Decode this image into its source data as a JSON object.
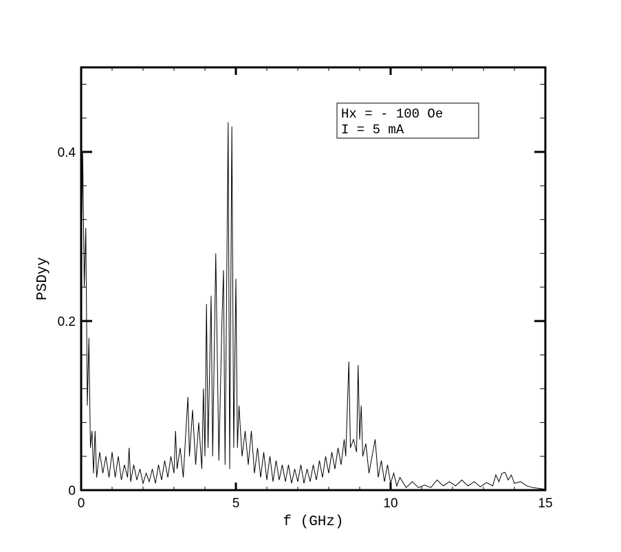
{
  "chart_data": {
    "type": "line",
    "title": "",
    "xlabel": "f (GHz)",
    "ylabel": "PSDyy",
    "xlim": [
      0,
      15
    ],
    "ylim": [
      0,
      0.5
    ],
    "x_ticks": [
      {
        "value": 0,
        "label": "0"
      },
      {
        "value": 5,
        "label": "5"
      },
      {
        "value": 10,
        "label": "10"
      },
      {
        "value": 15,
        "label": "15"
      }
    ],
    "y_ticks": [
      {
        "value": 0,
        "label": "0"
      },
      {
        "value": 0.2,
        "label": "0.2"
      },
      {
        "value": 0.4,
        "label": "0.4"
      }
    ],
    "x_minor_step": 1,
    "y_minor_step": 0.04,
    "grid": false,
    "legend_placement": "top-right",
    "annotation": {
      "lines": [
        "Hx = - 100 Oe",
        "I = 5 mA"
      ]
    },
    "peaks": [
      {
        "x": 0.02,
        "y": 0.4
      },
      {
        "x": 0.08,
        "y": 0.39
      },
      {
        "x": 0.14,
        "y": 0.31
      },
      {
        "x": 0.2,
        "y": 0.18
      },
      {
        "x": 1.55,
        "y": 0.05
      },
      {
        "x": 3.05,
        "y": 0.07
      },
      {
        "x": 3.45,
        "y": 0.11
      },
      {
        "x": 4.05,
        "y": 0.22
      },
      {
        "x": 4.2,
        "y": 0.23
      },
      {
        "x": 4.35,
        "y": 0.28
      },
      {
        "x": 4.6,
        "y": 0.26
      },
      {
        "x": 4.75,
        "y": 0.435
      },
      {
        "x": 4.87,
        "y": 0.43
      },
      {
        "x": 5.0,
        "y": 0.25
      },
      {
        "x": 8.65,
        "y": 0.152
      },
      {
        "x": 8.95,
        "y": 0.148
      },
      {
        "x": 9.05,
        "y": 0.1
      },
      {
        "x": 9.5,
        "y": 0.06
      },
      {
        "x": 13.7,
        "y": 0.021
      }
    ],
    "series": [
      {
        "values": [
          [
            0.0,
            0.25
          ],
          [
            0.05,
            0.4
          ],
          [
            0.1,
            0.24
          ],
          [
            0.15,
            0.31
          ],
          [
            0.2,
            0.1
          ],
          [
            0.25,
            0.18
          ],
          [
            0.3,
            0.05
          ],
          [
            0.35,
            0.07
          ],
          [
            0.4,
            0.02
          ],
          [
            0.45,
            0.07
          ],
          [
            0.5,
            0.015
          ],
          [
            0.6,
            0.045
          ],
          [
            0.7,
            0.02
          ],
          [
            0.8,
            0.04
          ],
          [
            0.9,
            0.015
          ],
          [
            1.0,
            0.045
          ],
          [
            1.1,
            0.015
          ],
          [
            1.2,
            0.04
          ],
          [
            1.3,
            0.012
          ],
          [
            1.4,
            0.03
          ],
          [
            1.5,
            0.015
          ],
          [
            1.55,
            0.05
          ],
          [
            1.6,
            0.01
          ],
          [
            1.7,
            0.03
          ],
          [
            1.8,
            0.012
          ],
          [
            1.9,
            0.025
          ],
          [
            2.0,
            0.008
          ],
          [
            2.1,
            0.02
          ],
          [
            2.2,
            0.01
          ],
          [
            2.3,
            0.025
          ],
          [
            2.4,
            0.008
          ],
          [
            2.5,
            0.03
          ],
          [
            2.6,
            0.012
          ],
          [
            2.7,
            0.035
          ],
          [
            2.8,
            0.015
          ],
          [
            2.9,
            0.04
          ],
          [
            3.0,
            0.02
          ],
          [
            3.05,
            0.07
          ],
          [
            3.1,
            0.025
          ],
          [
            3.2,
            0.05
          ],
          [
            3.3,
            0.015
          ],
          [
            3.4,
            0.08
          ],
          [
            3.45,
            0.11
          ],
          [
            3.5,
            0.04
          ],
          [
            3.6,
            0.095
          ],
          [
            3.7,
            0.03
          ],
          [
            3.8,
            0.08
          ],
          [
            3.9,
            0.025
          ],
          [
            3.95,
            0.12
          ],
          [
            4.0,
            0.04
          ],
          [
            4.05,
            0.22
          ],
          [
            4.1,
            0.05
          ],
          [
            4.2,
            0.23
          ],
          [
            4.25,
            0.04
          ],
          [
            4.35,
            0.28
          ],
          [
            4.45,
            0.035
          ],
          [
            4.55,
            0.2
          ],
          [
            4.6,
            0.26
          ],
          [
            4.65,
            0.03
          ],
          [
            4.75,
            0.435
          ],
          [
            4.8,
            0.025
          ],
          [
            4.87,
            0.43
          ],
          [
            4.93,
            0.05
          ],
          [
            5.0,
            0.25
          ],
          [
            5.05,
            0.05
          ],
          [
            5.1,
            0.1
          ],
          [
            5.2,
            0.04
          ],
          [
            5.3,
            0.07
          ],
          [
            5.4,
            0.03
          ],
          [
            5.5,
            0.07
          ],
          [
            5.6,
            0.02
          ],
          [
            5.7,
            0.05
          ],
          [
            5.8,
            0.015
          ],
          [
            5.9,
            0.045
          ],
          [
            6.0,
            0.012
          ],
          [
            6.1,
            0.04
          ],
          [
            6.2,
            0.01
          ],
          [
            6.3,
            0.035
          ],
          [
            6.4,
            0.012
          ],
          [
            6.5,
            0.03
          ],
          [
            6.6,
            0.01
          ],
          [
            6.7,
            0.03
          ],
          [
            6.8,
            0.008
          ],
          [
            6.9,
            0.025
          ],
          [
            7.0,
            0.01
          ],
          [
            7.1,
            0.03
          ],
          [
            7.2,
            0.008
          ],
          [
            7.3,
            0.025
          ],
          [
            7.4,
            0.01
          ],
          [
            7.5,
            0.03
          ],
          [
            7.6,
            0.012
          ],
          [
            7.7,
            0.035
          ],
          [
            7.8,
            0.015
          ],
          [
            7.9,
            0.04
          ],
          [
            8.0,
            0.02
          ],
          [
            8.1,
            0.045
          ],
          [
            8.2,
            0.025
          ],
          [
            8.3,
            0.05
          ],
          [
            8.4,
            0.03
          ],
          [
            8.5,
            0.06
          ],
          [
            8.55,
            0.04
          ],
          [
            8.65,
            0.152
          ],
          [
            8.7,
            0.05
          ],
          [
            8.8,
            0.06
          ],
          [
            8.9,
            0.045
          ],
          [
            8.95,
            0.148
          ],
          [
            9.0,
            0.06
          ],
          [
            9.05,
            0.1
          ],
          [
            9.1,
            0.04
          ],
          [
            9.2,
            0.055
          ],
          [
            9.3,
            0.02
          ],
          [
            9.4,
            0.04
          ],
          [
            9.5,
            0.06
          ],
          [
            9.6,
            0.015
          ],
          [
            9.7,
            0.035
          ],
          [
            9.8,
            0.01
          ],
          [
            9.9,
            0.03
          ],
          [
            10.0,
            0.008
          ],
          [
            10.1,
            0.02
          ],
          [
            10.2,
            0.005
          ],
          [
            10.3,
            0.015
          ],
          [
            10.5,
            0.003
          ],
          [
            10.7,
            0.01
          ],
          [
            10.9,
            0.003
          ],
          [
            11.1,
            0.006
          ],
          [
            11.3,
            0.003
          ],
          [
            11.5,
            0.012
          ],
          [
            11.7,
            0.005
          ],
          [
            11.9,
            0.01
          ],
          [
            12.1,
            0.005
          ],
          [
            12.3,
            0.012
          ],
          [
            12.5,
            0.005
          ],
          [
            12.7,
            0.01
          ],
          [
            12.9,
            0.004
          ],
          [
            13.1,
            0.009
          ],
          [
            13.3,
            0.005
          ],
          [
            13.4,
            0.018
          ],
          [
            13.5,
            0.01
          ],
          [
            13.6,
            0.02
          ],
          [
            13.7,
            0.021
          ],
          [
            13.8,
            0.012
          ],
          [
            13.9,
            0.018
          ],
          [
            14.0,
            0.008
          ],
          [
            14.2,
            0.01
          ],
          [
            14.4,
            0.005
          ],
          [
            14.6,
            0.003
          ],
          [
            14.8,
            0.002
          ],
          [
            15.0,
            0.001
          ]
        ]
      }
    ]
  }
}
